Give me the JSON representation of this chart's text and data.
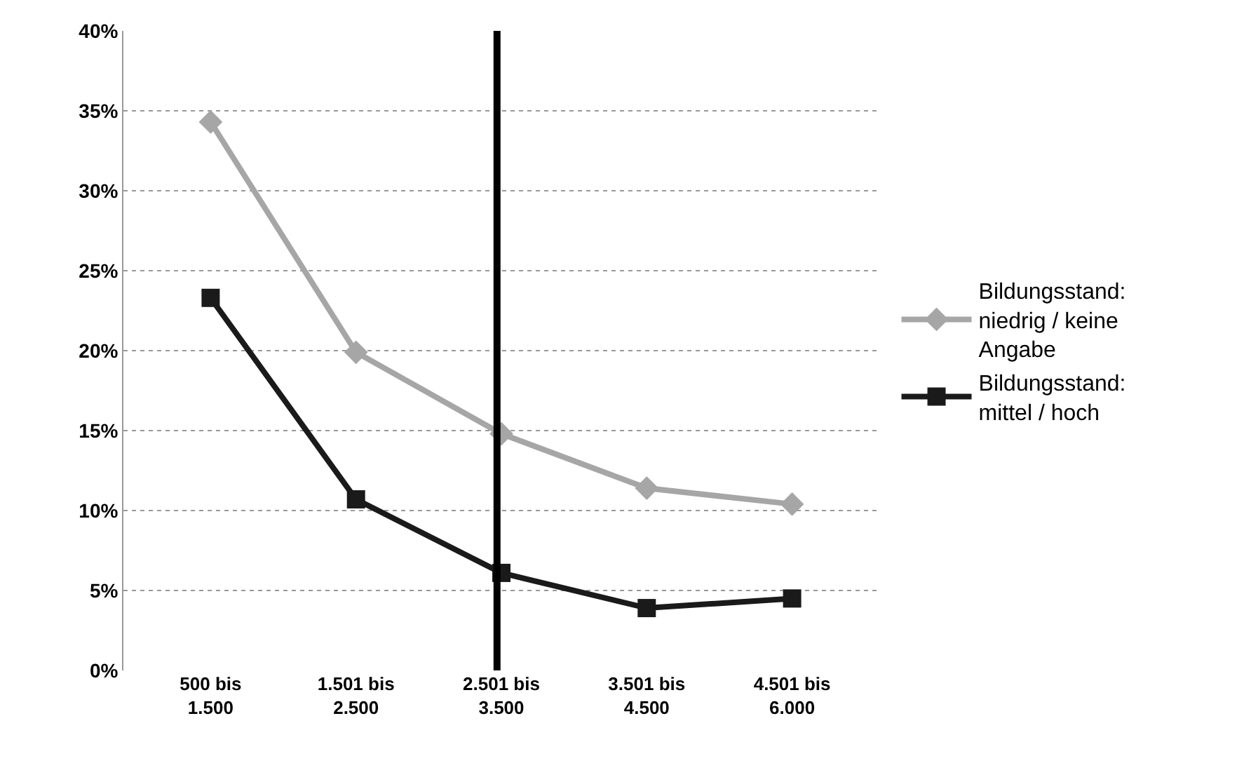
{
  "chart_data": {
    "type": "line",
    "categories": [
      "500 bis 1.500",
      "1.501 bis 2.500",
      "2.501 bis 3.500",
      "3.501 bis 4.500",
      "4.501 bis 6.000"
    ],
    "series": [
      {
        "name": "Bildungsstand: niedrig / keine Angabe",
        "color": "#a6a6a6",
        "marker": "diamond",
        "values": [
          34.3,
          19.9,
          14.8,
          11.4,
          10.4
        ]
      },
      {
        "name": "Bildungsstand: mittel / hoch",
        "color": "#1a1a1a",
        "marker": "square",
        "values": [
          23.3,
          10.7,
          6.1,
          3.9,
          4.5
        ]
      }
    ],
    "ylim": [
      0,
      40
    ],
    "yticks": [
      {
        "value": 0,
        "label": "0%"
      },
      {
        "value": 5,
        "label": "5%"
      },
      {
        "value": 10,
        "label": "10%"
      },
      {
        "value": 15,
        "label": "15%"
      },
      {
        "value": 20,
        "label": "20%"
      },
      {
        "value": 25,
        "label": "25%"
      },
      {
        "value": 30,
        "label": "30%"
      },
      {
        "value": 35,
        "label": "35%"
      },
      {
        "value": 40,
        "label": "40%"
      }
    ],
    "ref_lines": [
      {
        "axis": "x",
        "value": "2.501 bis 3.500",
        "color": "#000000"
      }
    ],
    "grid": "y",
    "legend": "right",
    "line_style": "solid"
  }
}
